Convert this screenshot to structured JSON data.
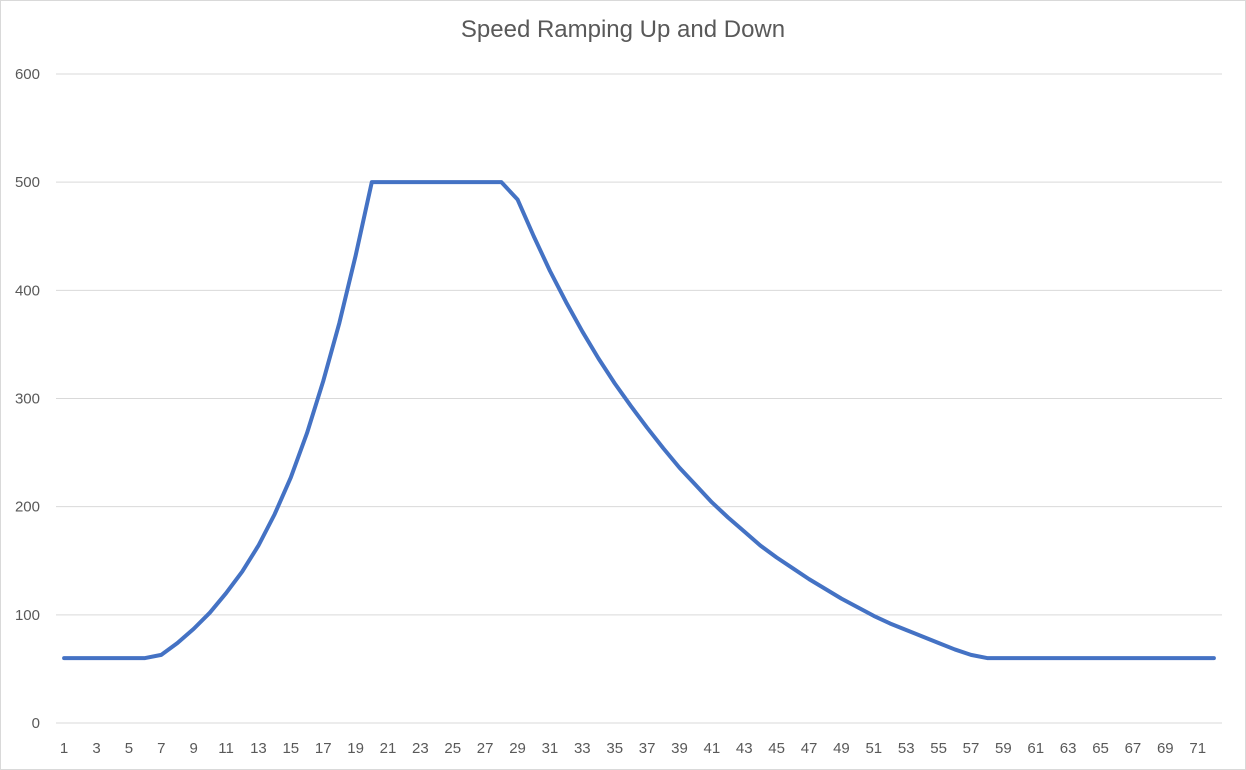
{
  "chart_data": {
    "type": "line",
    "title": "Speed Ramping Up and Down",
    "xlabel": "",
    "ylabel": "",
    "ylim": [
      0,
      600
    ],
    "yticks": [
      0,
      100,
      200,
      300,
      400,
      500,
      600
    ],
    "xticks": [
      1,
      3,
      5,
      7,
      9,
      11,
      13,
      15,
      17,
      19,
      21,
      23,
      25,
      27,
      29,
      31,
      33,
      35,
      37,
      39,
      41,
      43,
      45,
      47,
      49,
      51,
      53,
      55,
      57,
      59,
      61,
      63,
      65,
      67,
      69,
      71
    ],
    "grid": true,
    "legend": "none",
    "series_color": "#4472c4",
    "series": [
      {
        "x": [
          1,
          2,
          3,
          4,
          5,
          6,
          7,
          8,
          9,
          10,
          11,
          12,
          13,
          14,
          15,
          16,
          17,
          18,
          19,
          20,
          21,
          22,
          23,
          24,
          25,
          26,
          27,
          28,
          29,
          30,
          31,
          32,
          33,
          34,
          35,
          36,
          37,
          38,
          39,
          40,
          41,
          42,
          43,
          44,
          45,
          46,
          47,
          48,
          49,
          50,
          51,
          52,
          53,
          54,
          55,
          56,
          57,
          58,
          59,
          60,
          61,
          62,
          63,
          64,
          65,
          66,
          67,
          68,
          69,
          70,
          71,
          72
        ],
        "values": [
          60,
          60,
          60,
          60,
          60,
          60,
          63,
          74,
          87,
          102,
          120,
          140,
          164,
          193,
          227,
          268,
          316,
          370,
          432,
          500,
          500,
          500,
          500,
          500,
          500,
          500,
          500,
          500,
          484,
          450,
          418,
          389,
          362,
          337,
          314,
          293,
          273,
          254,
          236,
          220,
          204,
          190,
          177,
          164,
          153,
          143,
          133,
          124,
          115,
          107,
          99,
          92,
          86,
          80,
          74,
          68,
          63,
          60,
          60,
          60,
          60,
          60,
          60,
          60,
          60,
          60,
          60,
          60,
          60,
          60,
          60,
          60
        ]
      }
    ]
  }
}
